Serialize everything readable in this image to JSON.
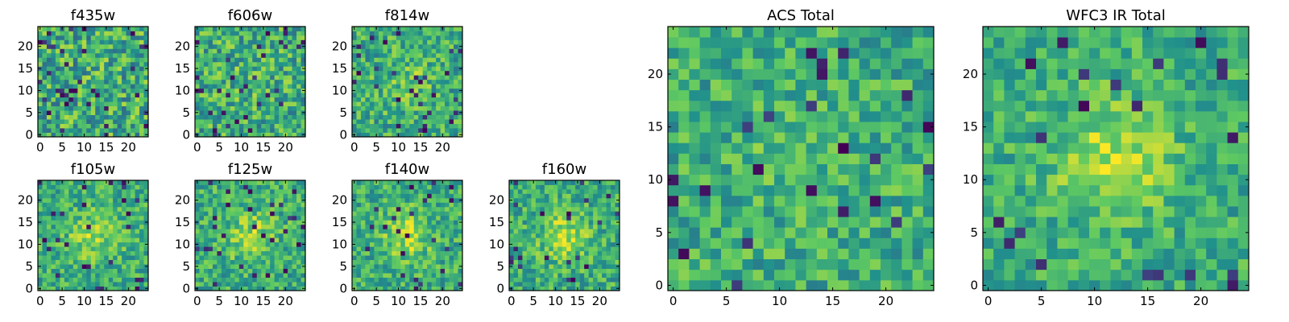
{
  "chart_data": {
    "type": "heatmap",
    "colormap": "viridis",
    "colors": [
      "#440154",
      "#3b528b",
      "#21918c",
      "#5ec962",
      "#fde725"
    ],
    "panels": [
      {
        "title": "f435w",
        "grid_size": 25,
        "seed": 11,
        "signal": 0.0,
        "noise": 0.55,
        "dark_fraction": 0.06,
        "xticks": [
          "0",
          "5",
          "10",
          "15",
          "20"
        ],
        "yticks": [
          "0",
          "5",
          "10",
          "15",
          "20"
        ]
      },
      {
        "title": "f606w",
        "grid_size": 25,
        "seed": 23,
        "signal": 0.1,
        "noise": 0.5,
        "dark_fraction": 0.05,
        "xticks": [
          "0",
          "5",
          "10",
          "15",
          "20"
        ],
        "yticks": [
          "0",
          "5",
          "10",
          "15",
          "20"
        ]
      },
      {
        "title": "f814w",
        "grid_size": 25,
        "seed": 37,
        "signal": 0.25,
        "noise": 0.45,
        "dark_fraction": 0.04,
        "xticks": [
          "0",
          "5",
          "10",
          "15",
          "20"
        ],
        "yticks": [
          "0",
          "5",
          "10",
          "15",
          "20"
        ]
      },
      {
        "title": "f105w",
        "grid_size": 25,
        "seed": 41,
        "signal": 0.45,
        "noise": 0.4,
        "dark_fraction": 0.04,
        "xticks": [
          "0",
          "5",
          "10",
          "15",
          "20"
        ],
        "yticks": [
          "0",
          "5",
          "10",
          "15",
          "20"
        ]
      },
      {
        "title": "f125w",
        "grid_size": 25,
        "seed": 53,
        "signal": 0.45,
        "noise": 0.4,
        "dark_fraction": 0.04,
        "xticks": [
          "0",
          "5",
          "10",
          "15",
          "20"
        ],
        "yticks": [
          "0",
          "5",
          "10",
          "15",
          "20"
        ]
      },
      {
        "title": "f140w",
        "grid_size": 25,
        "seed": 67,
        "signal": 0.5,
        "noise": 0.4,
        "dark_fraction": 0.04,
        "xticks": [
          "0",
          "5",
          "10",
          "15",
          "20"
        ],
        "yticks": [
          "0",
          "5",
          "10",
          "15",
          "20"
        ]
      },
      {
        "title": "f160w",
        "grid_size": 25,
        "seed": 79,
        "signal": 0.5,
        "noise": 0.4,
        "dark_fraction": 0.05,
        "xticks": [
          "0",
          "5",
          "10",
          "15",
          "20"
        ],
        "yticks": [
          "0",
          "5",
          "10",
          "15",
          "20"
        ]
      },
      {
        "title": "ACS Total",
        "grid_size": 25,
        "seed": 97,
        "signal": 0.2,
        "noise": 0.4,
        "dark_fraction": 0.04,
        "xticks": [
          "0",
          "5",
          "10",
          "15",
          "20"
        ],
        "yticks": [
          "0",
          "5",
          "10",
          "15",
          "20"
        ]
      },
      {
        "title": "WFC3 IR Total",
        "grid_size": 25,
        "seed": 131,
        "signal": 0.55,
        "noise": 0.35,
        "dark_fraction": 0.04,
        "xticks": [
          "0",
          "5",
          "10",
          "15",
          "20"
        ],
        "yticks": [
          "0",
          "5",
          "10",
          "15",
          "20"
        ]
      }
    ]
  }
}
